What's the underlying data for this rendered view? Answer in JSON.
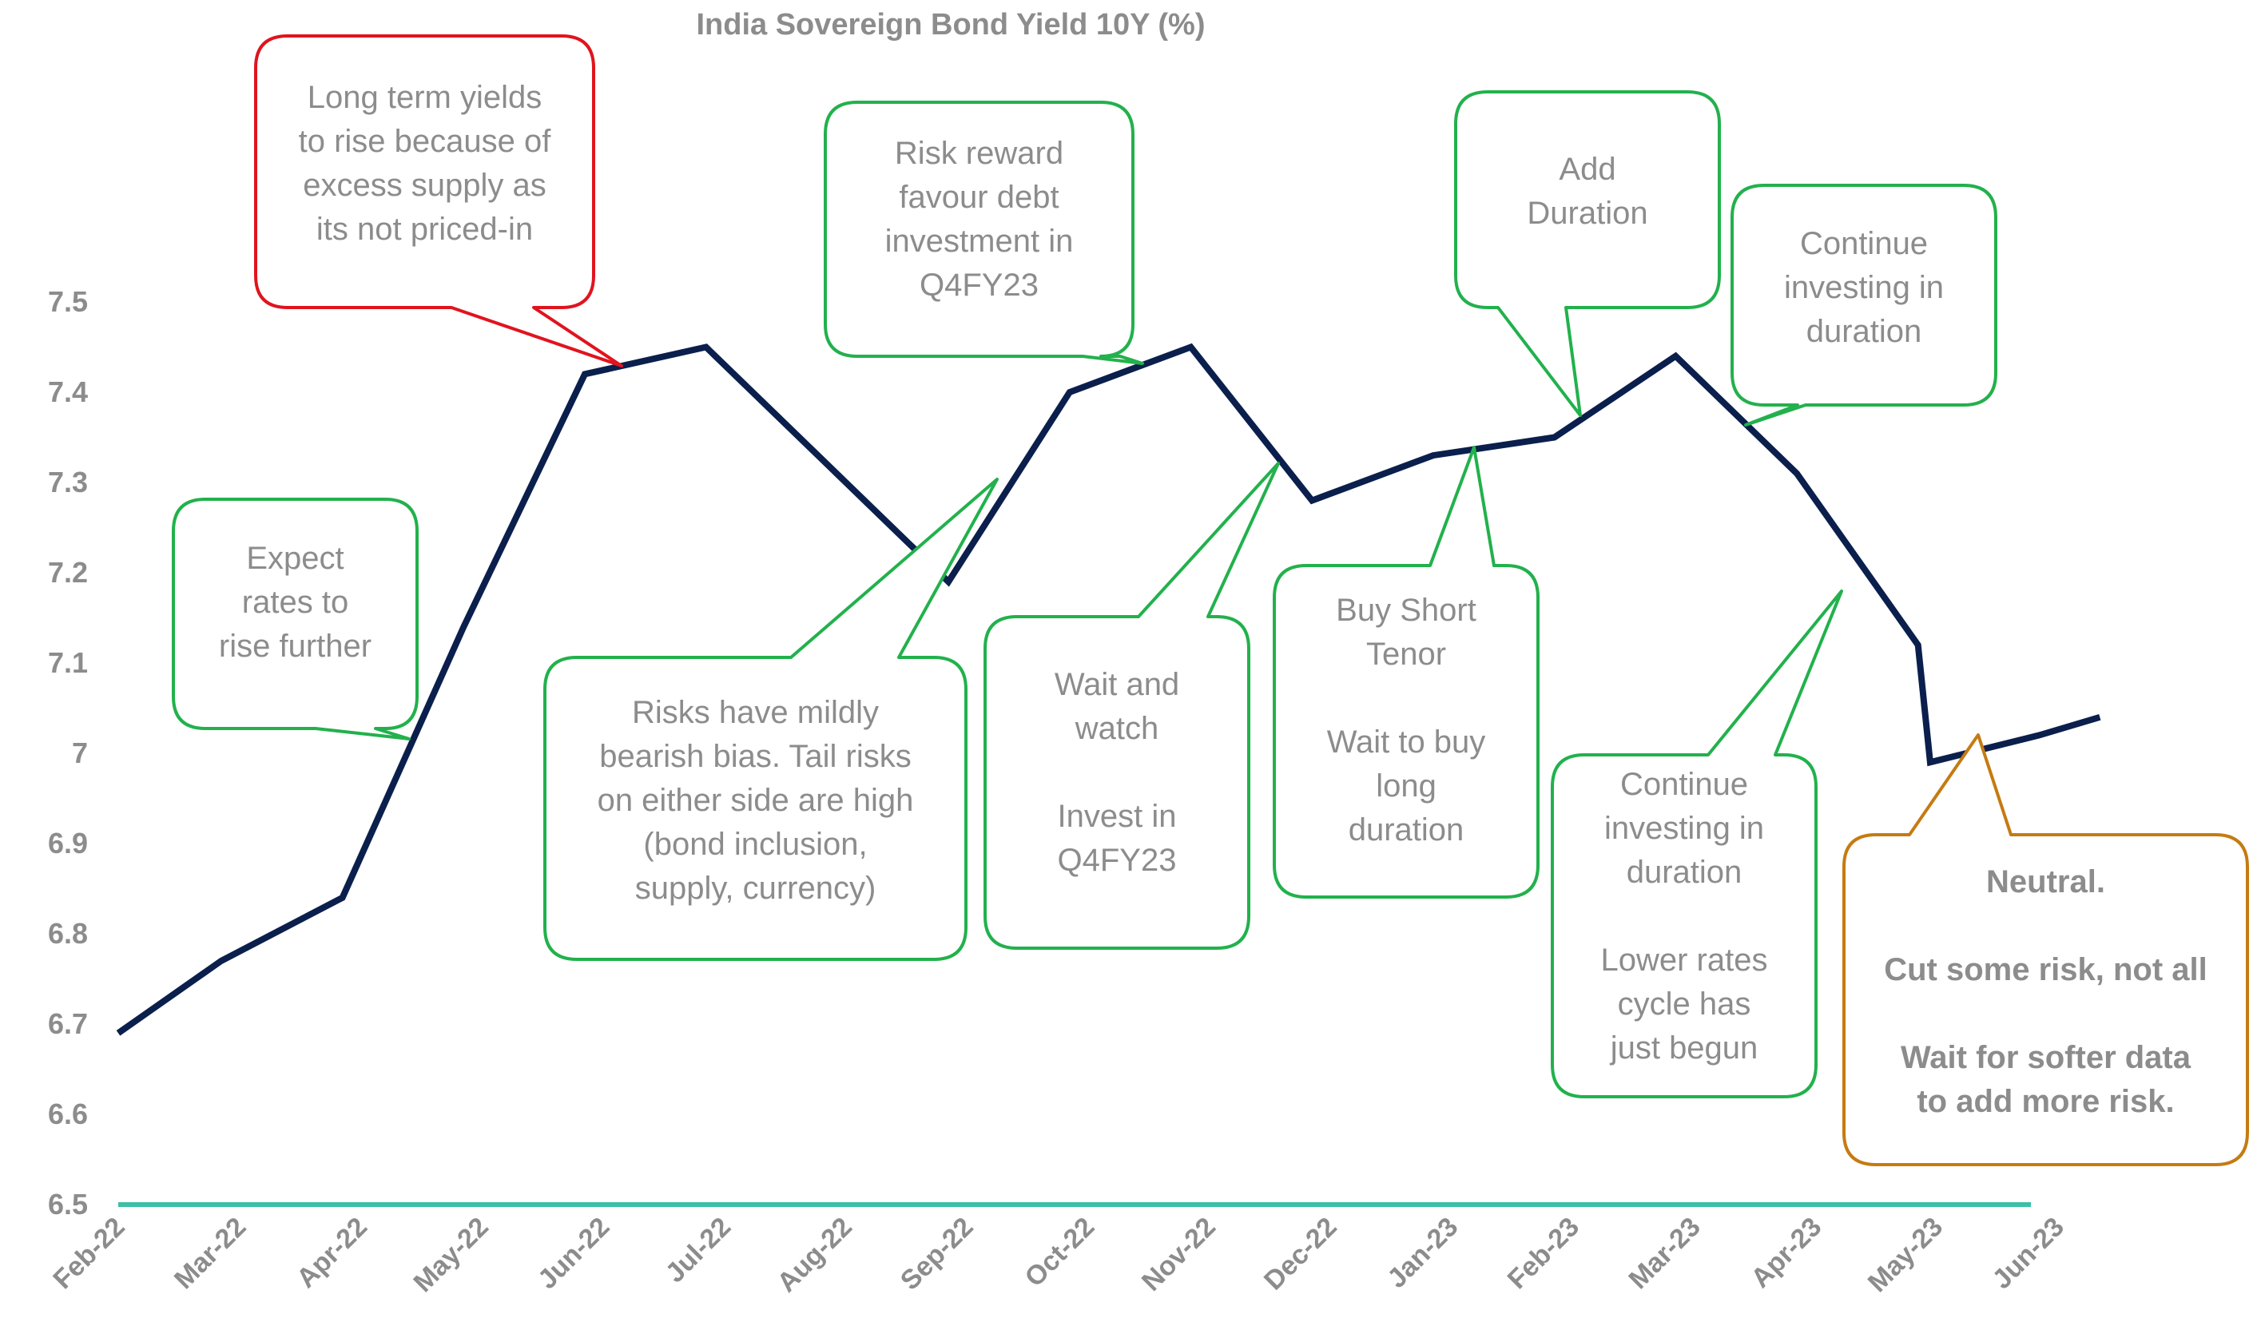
{
  "chart_data": {
    "type": "line",
    "title": "India Sovereign Bond Yield 10Y (%)",
    "categories": [
      "Feb-22",
      "Mar-22",
      "Apr-22",
      "May-22",
      "Jun-22",
      "Jul-22",
      "Aug-22",
      "Sep-22",
      "Oct-22",
      "Nov-22",
      "Dec-22",
      "Jan-23",
      "Feb-23",
      "Mar-23",
      "Apr-23",
      "May-23",
      "Jun-23"
    ],
    "series": [
      {
        "color": "#0b1f4d",
        "points": [
          {
            "x": 0.0,
            "y": 6.69
          },
          {
            "x": 0.85,
            "y": 6.77
          },
          {
            "x": 1.85,
            "y": 6.84
          },
          {
            "x": 2.85,
            "y": 7.14
          },
          {
            "x": 3.85,
            "y": 7.42
          },
          {
            "x": 4.85,
            "y": 7.45
          },
          {
            "x": 5.85,
            "y": 7.32
          },
          {
            "x": 6.85,
            "y": 7.19
          },
          {
            "x": 7.85,
            "y": 7.4
          },
          {
            "x": 8.85,
            "y": 7.45
          },
          {
            "x": 9.85,
            "y": 7.28
          },
          {
            "x": 10.85,
            "y": 7.33
          },
          {
            "x": 11.85,
            "y": 7.35
          },
          {
            "x": 12.85,
            "y": 7.44
          },
          {
            "x": 13.85,
            "y": 7.31
          },
          {
            "x": 14.85,
            "y": 7.12
          },
          {
            "x": 14.95,
            "y": 6.99
          },
          {
            "x": 15.85,
            "y": 7.02
          },
          {
            "x": 16.35,
            "y": 7.04
          }
        ]
      }
    ],
    "yticks": [
      "7.5",
      "7.4",
      "7.3",
      "7.2",
      "7.1",
      "7",
      "6.9",
      "6.8",
      "6.7",
      "6.6",
      "6.5"
    ],
    "ylim": [
      6.5,
      7.5
    ],
    "baseline_color": "#3dbfa6",
    "grid": false,
    "annotations": [
      {
        "name": "callout-expect-rates",
        "color": "#22b14c",
        "bold": false,
        "lines": [
          "Expect",
          "rates to",
          "rise further"
        ]
      },
      {
        "name": "callout-long-term-yields",
        "color": "#e0141e",
        "bold": false,
        "lines": [
          "Long term yields",
          "to rise because of",
          "excess supply as",
          "its not priced-in"
        ]
      },
      {
        "name": "callout-risks-mildly-bearish",
        "color": "#22b14c",
        "bold": false,
        "lines": [
          "Risks have mildly",
          "bearish bias. Tail risks",
          "on either side are high",
          "(bond inclusion,",
          "supply, currency)"
        ]
      },
      {
        "name": "callout-risk-reward",
        "color": "#22b14c",
        "bold": false,
        "lines": [
          "Risk reward",
          "favour debt",
          "investment in",
          "Q4FY23"
        ]
      },
      {
        "name": "callout-wait-and-watch",
        "color": "#22b14c",
        "bold": false,
        "lines": [
          "Wait and",
          "watch",
          "",
          "Invest in",
          "Q4FY23"
        ]
      },
      {
        "name": "callout-buy-short-tenor",
        "color": "#22b14c",
        "bold": false,
        "lines": [
          "Buy Short",
          "Tenor",
          "",
          "Wait to buy",
          "long",
          "duration"
        ]
      },
      {
        "name": "callout-add-duration",
        "color": "#22b14c",
        "bold": false,
        "lines": [
          "Add",
          "Duration"
        ]
      },
      {
        "name": "callout-continue-investing-top",
        "color": "#22b14c",
        "bold": false,
        "lines": [
          "Continue",
          "investing in",
          "duration"
        ]
      },
      {
        "name": "callout-continue-investing-lower",
        "color": "#22b14c",
        "bold": false,
        "lines": [
          "Continue",
          "investing in",
          "duration",
          "",
          "Lower rates",
          "cycle has",
          "just begun"
        ]
      },
      {
        "name": "callout-neutral",
        "color": "#c57b12",
        "text_color": "#e8900c",
        "bold": true,
        "lines": [
          "Neutral.",
          "",
          "Cut some risk, not all",
          "",
          "Wait for softer data",
          "to add more risk."
        ]
      }
    ]
  }
}
